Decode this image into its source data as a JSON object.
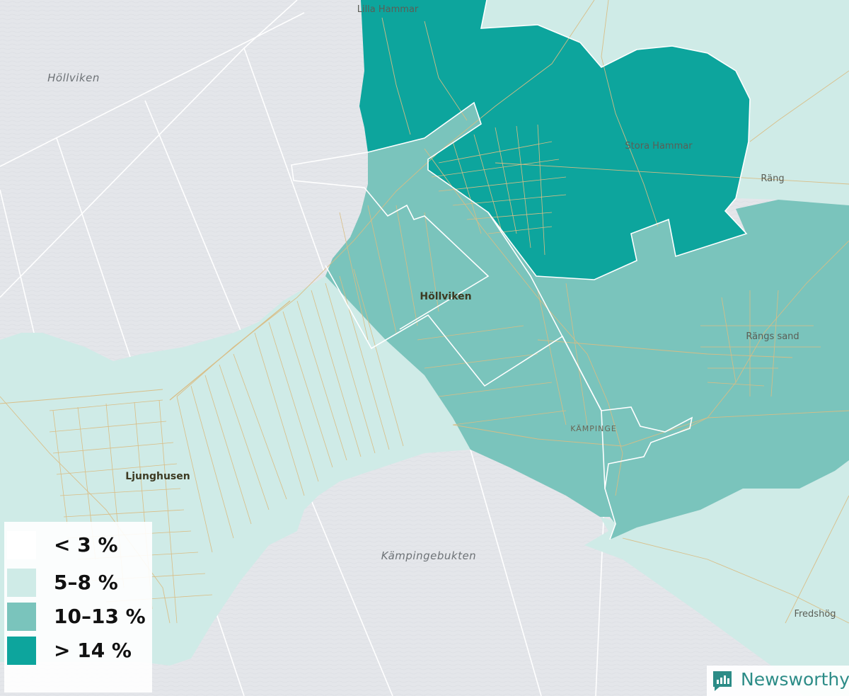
{
  "map": {
    "water_labels": {
      "hollviken_sea": "Höllviken",
      "kampingebukten": "Kämpingebukten"
    },
    "place_labels": {
      "lilla_hammar": "Lilla Hammar",
      "stora_hammar": "Stora Hammar",
      "rang": "Räng",
      "hollviken": "Höllviken",
      "rangs_sand": "Rängs sand",
      "kampinge": "KÄMPINGE",
      "ljunghusen": "Ljunghusen",
      "fredshog": "Fredshög"
    },
    "colors": {
      "water": "#e4e6ea",
      "class_5_8": "#cfebe7",
      "class_10_13": "#7ac4bc",
      "class_14_plus": "#0da59d",
      "roads": "#d9bd85",
      "borders": "#ffffff"
    }
  },
  "legend": {
    "items": [
      {
        "label": "< 3 %",
        "color": "#ffffff"
      },
      {
        "label": "5–8 %",
        "color": "#cfebe7"
      },
      {
        "label": "10–13 %",
        "color": "#7ac4bc"
      },
      {
        "label": "> 14 %",
        "color": "#0da59d"
      }
    ]
  },
  "brand": {
    "name": "Newsworthy",
    "icon": "bar-chart-speech-bubble-icon"
  }
}
